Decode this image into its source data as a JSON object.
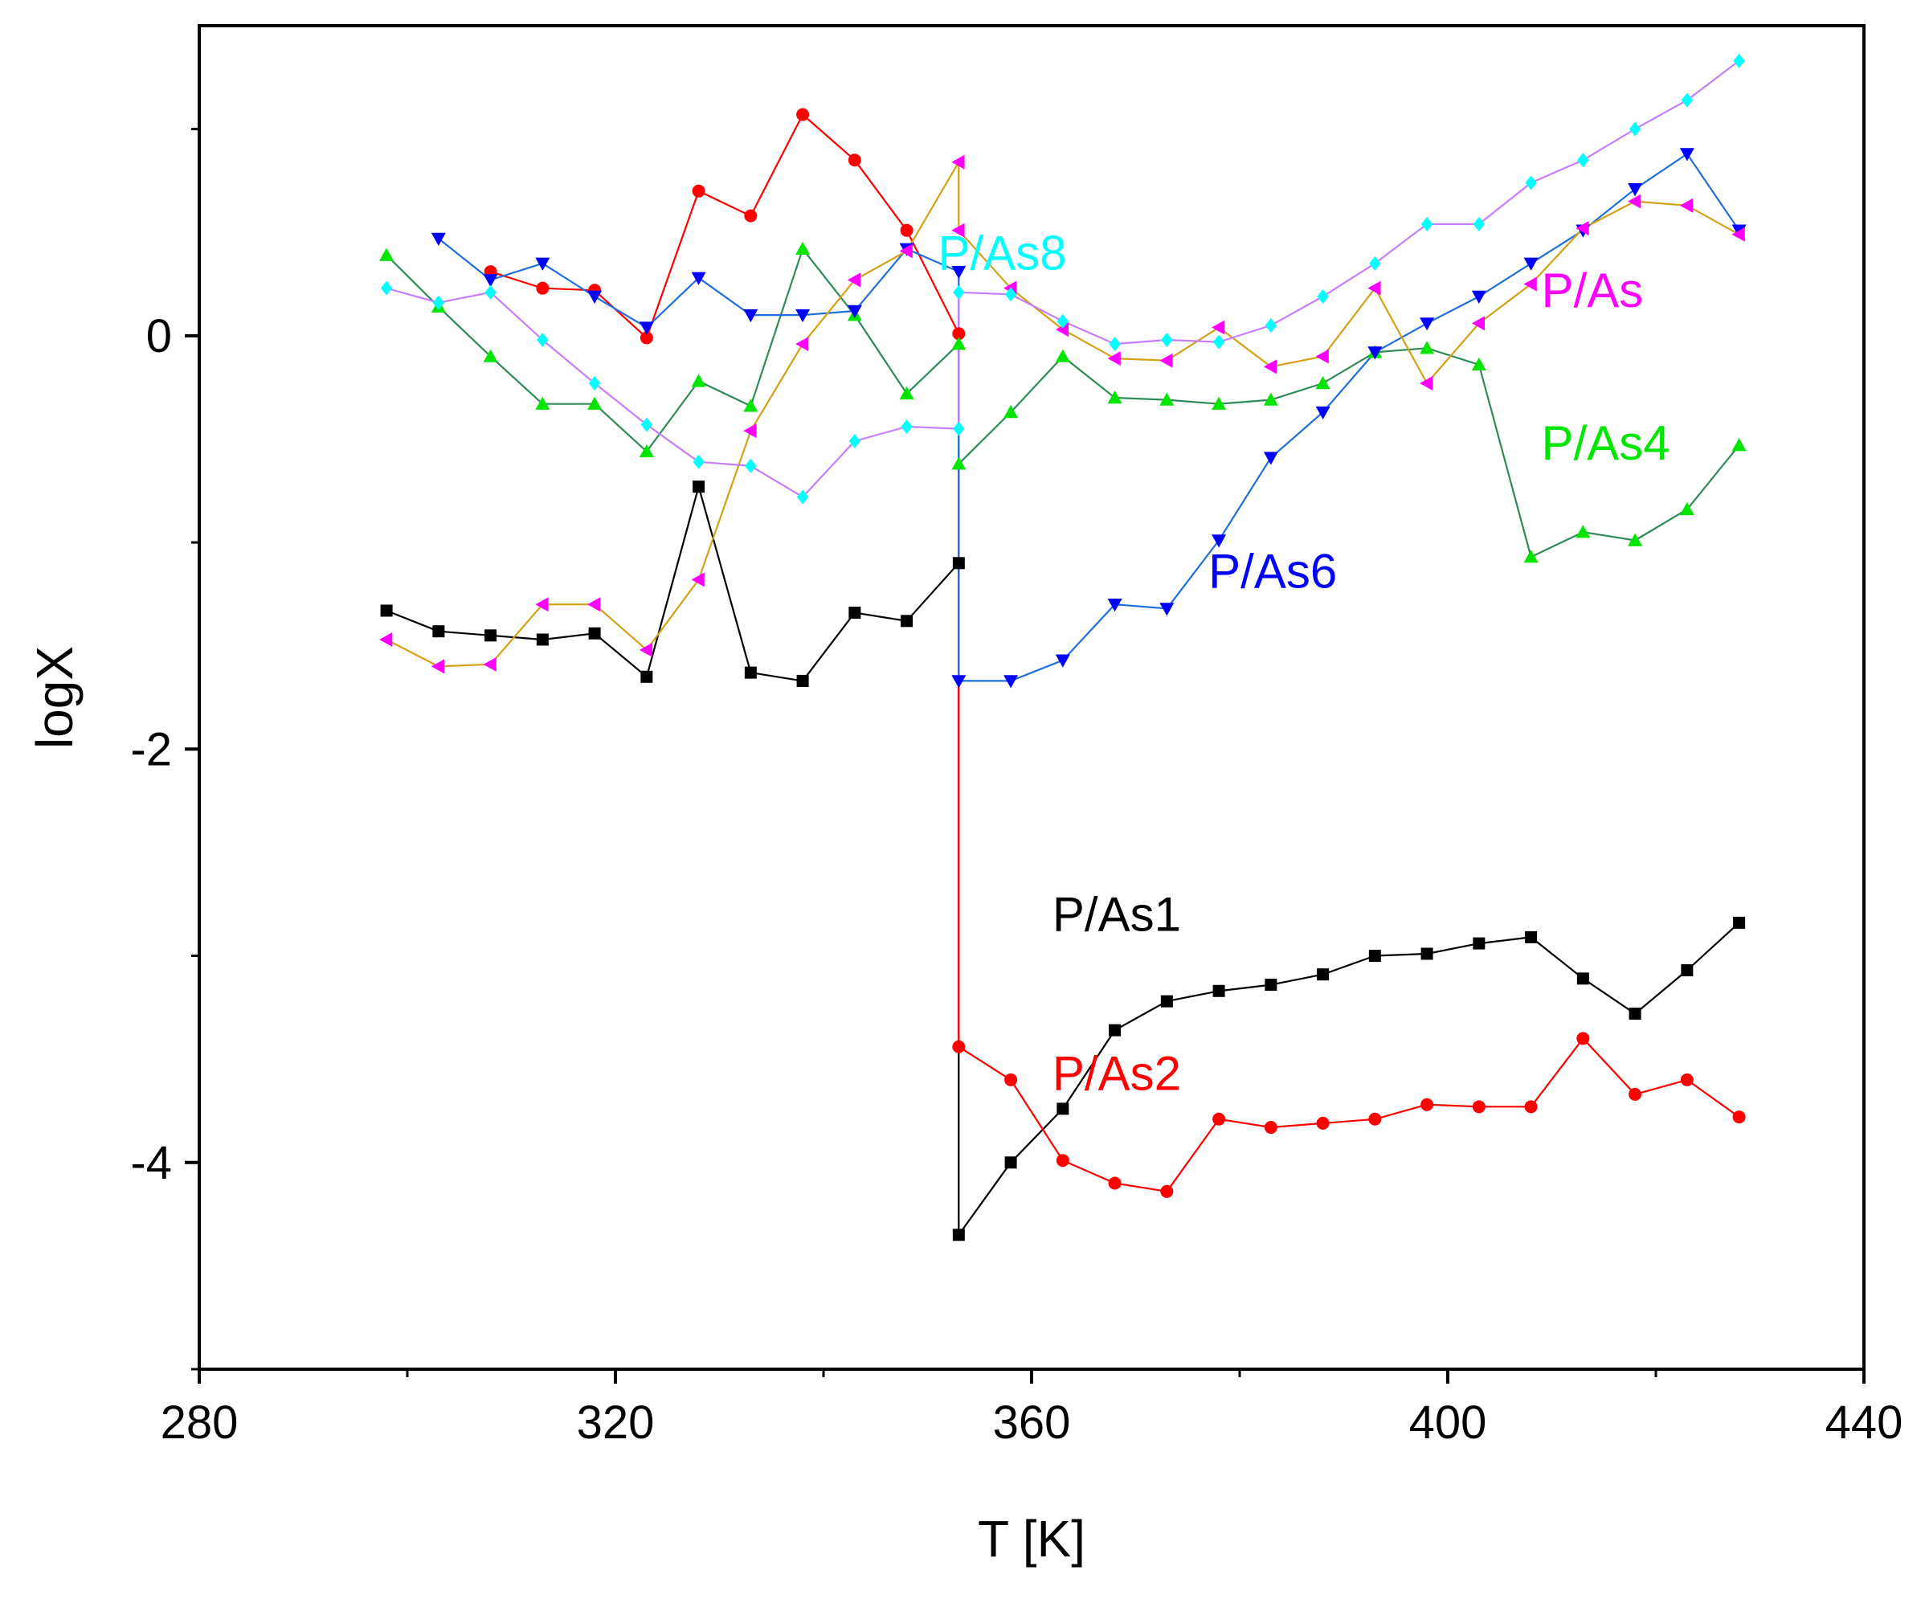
{
  "chart_data": {
    "type": "line",
    "title": "",
    "xlabel": "T [K]",
    "ylabel": "logX",
    "xlim": [
      280,
      440
    ],
    "ylim": [
      -5,
      1.5
    ],
    "xticks": [
      280,
      320,
      360,
      400,
      440
    ],
    "xtick_labels": [
      "280",
      "320",
      "360",
      "400",
      "440"
    ],
    "yticks": [
      0,
      -2,
      -4
    ],
    "ytick_labels": [
      "0",
      "-2",
      "-4"
    ],
    "grid": false,
    "series": [
      {
        "name": "P/As1",
        "label": "P/As1",
        "color": "#000000",
        "line_color": "#000000",
        "marker": "square",
        "label_pos": [
          362,
          -2.88
        ],
        "points": [
          [
            298,
            -1.33
          ],
          [
            303,
            -1.43
          ],
          [
            308,
            -1.45
          ],
          [
            313,
            -1.47
          ],
          [
            318,
            -1.44
          ],
          [
            323,
            -1.65
          ],
          [
            328,
            -0.73
          ],
          [
            333,
            -1.63
          ],
          [
            338,
            -1.67
          ],
          [
            343,
            -1.34
          ],
          [
            348,
            -1.38
          ],
          [
            353,
            -1.1
          ],
          [
            353,
            -4.35
          ],
          [
            358,
            -4.0
          ],
          [
            363,
            -3.74
          ],
          [
            368,
            -3.36
          ],
          [
            373,
            -3.22
          ],
          [
            378,
            -3.17
          ],
          [
            383,
            -3.14
          ],
          [
            388,
            -3.09
          ],
          [
            393,
            -3.0
          ],
          [
            398,
            -2.99
          ],
          [
            403,
            -2.94
          ],
          [
            408,
            -2.91
          ],
          [
            413,
            -3.11
          ],
          [
            418,
            -3.28
          ],
          [
            423,
            -3.07
          ],
          [
            428,
            -2.84
          ]
        ]
      },
      {
        "name": "P/As2",
        "label": "P/As2",
        "color": "#ff0000",
        "line_color": "#ff0000",
        "marker": "circle",
        "label_pos": [
          362,
          -3.65
        ],
        "points": [
          [
            308,
            0.31
          ],
          [
            313,
            0.23
          ],
          [
            318,
            0.22
          ],
          [
            323,
            -0.01
          ],
          [
            328,
            0.7
          ],
          [
            333,
            0.58
          ],
          [
            338,
            1.07
          ],
          [
            343,
            0.85
          ],
          [
            348,
            0.51
          ],
          [
            353,
            0.01
          ],
          [
            353,
            -3.44
          ],
          [
            358,
            -3.6
          ],
          [
            363,
            -3.99
          ],
          [
            368,
            -4.1
          ],
          [
            373,
            -4.14
          ],
          [
            378,
            -3.79
          ],
          [
            383,
            -3.83
          ],
          [
            388,
            -3.81
          ],
          [
            393,
            -3.79
          ],
          [
            398,
            -3.72
          ],
          [
            403,
            -3.73
          ],
          [
            408,
            -3.73
          ],
          [
            413,
            -3.4
          ],
          [
            418,
            -3.67
          ],
          [
            423,
            -3.6
          ],
          [
            428,
            -3.78
          ]
        ]
      },
      {
        "name": "P/As4",
        "label": "P/As4",
        "color": "#00e600",
        "line_color": "#2e8b57",
        "marker": "triangle-up",
        "label_pos": [
          409,
          -0.6
        ],
        "points": [
          [
            298,
            0.39
          ],
          [
            303,
            0.14
          ],
          [
            308,
            -0.1
          ],
          [
            313,
            -0.33
          ],
          [
            318,
            -0.33
          ],
          [
            323,
            -0.56
          ],
          [
            328,
            -0.22
          ],
          [
            333,
            -0.34
          ],
          [
            338,
            0.42
          ],
          [
            343,
            0.1
          ],
          [
            348,
            -0.28
          ],
          [
            353,
            -0.04
          ],
          [
            353,
            -0.62
          ],
          [
            358,
            -0.37
          ],
          [
            363,
            -0.1
          ],
          [
            368,
            -0.3
          ],
          [
            373,
            -0.31
          ],
          [
            378,
            -0.33
          ],
          [
            383,
            -0.31
          ],
          [
            388,
            -0.23
          ],
          [
            393,
            -0.08
          ],
          [
            398,
            -0.06
          ],
          [
            403,
            -0.14
          ],
          [
            408,
            -1.07
          ],
          [
            413,
            -0.95
          ],
          [
            418,
            -0.99
          ],
          [
            423,
            -0.84
          ],
          [
            428,
            -0.53
          ]
        ]
      },
      {
        "name": "P/As6",
        "label": "P/As6",
        "color": "#0000ff",
        "line_color": "#1e6fdc",
        "marker": "triangle-down",
        "label_pos": [
          377,
          -1.22
        ],
        "points": [
          [
            303,
            0.47
          ],
          [
            308,
            0.27
          ],
          [
            313,
            0.35
          ],
          [
            318,
            0.19
          ],
          [
            323,
            0.04
          ],
          [
            328,
            0.28
          ],
          [
            333,
            0.1
          ],
          [
            338,
            0.1
          ],
          [
            343,
            0.12
          ],
          [
            348,
            0.42
          ],
          [
            353,
            0.31
          ],
          [
            353,
            -1.67
          ],
          [
            358,
            -1.67
          ],
          [
            363,
            -1.57
          ],
          [
            368,
            -1.3
          ],
          [
            373,
            -1.32
          ],
          [
            378,
            -0.99
          ],
          [
            383,
            -0.59
          ],
          [
            388,
            -0.37
          ],
          [
            393,
            -0.08
          ],
          [
            398,
            0.06
          ],
          [
            403,
            0.19
          ],
          [
            408,
            0.35
          ],
          [
            413,
            0.51
          ],
          [
            418,
            0.71
          ],
          [
            423,
            0.88
          ],
          [
            428,
            0.51
          ]
        ]
      },
      {
        "name": "P/As",
        "label": "P/As",
        "color": "#ff00ff",
        "line_color": "#d4a017",
        "marker": "triangle-left",
        "label_pos": [
          409,
          0.14
        ],
        "points": [
          [
            298,
            -1.47
          ],
          [
            303,
            -1.6
          ],
          [
            308,
            -1.59
          ],
          [
            313,
            -1.3
          ],
          [
            318,
            -1.3
          ],
          [
            323,
            -1.52
          ],
          [
            328,
            -1.18
          ],
          [
            333,
            -0.46
          ],
          [
            338,
            -0.04
          ],
          [
            343,
            0.27
          ],
          [
            348,
            0.41
          ],
          [
            353,
            0.84
          ],
          [
            353,
            0.51
          ],
          [
            358,
            0.23
          ],
          [
            363,
            0.03
          ],
          [
            368,
            -0.11
          ],
          [
            373,
            -0.12
          ],
          [
            378,
            0.04
          ],
          [
            383,
            -0.15
          ],
          [
            388,
            -0.1
          ],
          [
            393,
            0.23
          ],
          [
            398,
            -0.23
          ],
          [
            403,
            0.06
          ],
          [
            408,
            0.25
          ],
          [
            413,
            0.52
          ],
          [
            418,
            0.65
          ],
          [
            423,
            0.63
          ],
          [
            428,
            0.49
          ]
        ]
      },
      {
        "name": "P/As8",
        "label": "P/As8",
        "color": "#00ffff",
        "line_color": "#c77dff",
        "marker": "diamond",
        "label_pos": [
          351,
          0.32
        ],
        "points": [
          [
            298,
            0.23
          ],
          [
            303,
            0.16
          ],
          [
            308,
            0.21
          ],
          [
            313,
            -0.02
          ],
          [
            318,
            -0.23
          ],
          [
            323,
            -0.43
          ],
          [
            328,
            -0.61
          ],
          [
            333,
            -0.63
          ],
          [
            338,
            -0.78
          ],
          [
            343,
            -0.51
          ],
          [
            348,
            -0.44
          ],
          [
            353,
            -0.45
          ],
          [
            353,
            0.21
          ],
          [
            358,
            0.2
          ],
          [
            363,
            0.07
          ],
          [
            368,
            -0.04
          ],
          [
            373,
            -0.02
          ],
          [
            378,
            -0.03
          ],
          [
            383,
            0.05
          ],
          [
            388,
            0.19
          ],
          [
            393,
            0.35
          ],
          [
            398,
            0.54
          ],
          [
            403,
            0.54
          ],
          [
            408,
            0.74
          ],
          [
            413,
            0.85
          ],
          [
            418,
            1.0
          ],
          [
            423,
            1.14
          ],
          [
            428,
            1.33
          ]
        ]
      }
    ]
  }
}
